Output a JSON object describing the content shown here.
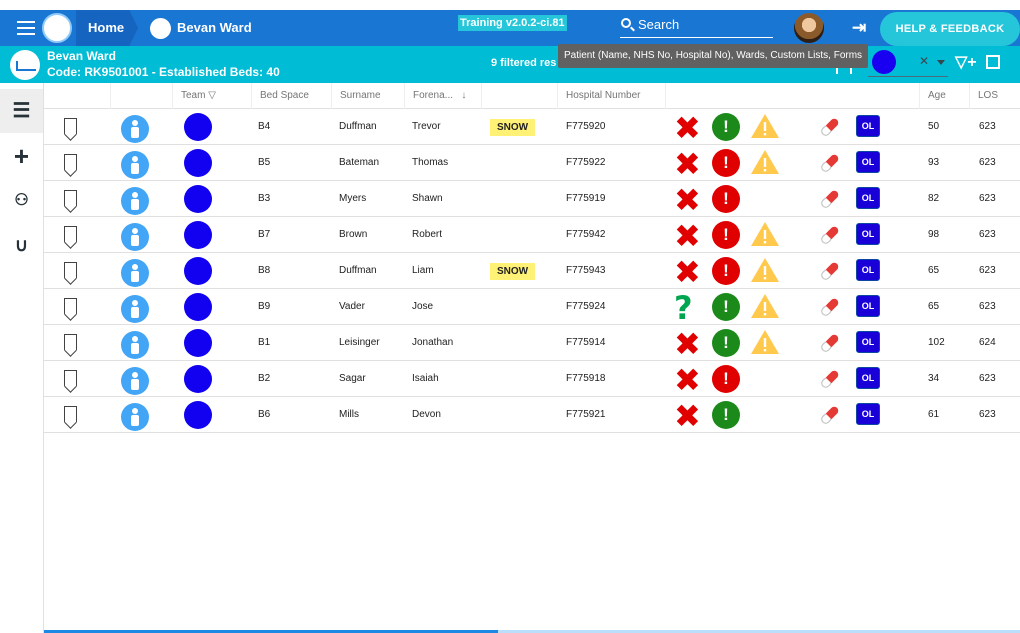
{
  "topbar": {
    "home_label": "Home",
    "ward_label": "Bevan Ward",
    "version": "Training v2.0.2-ci.81",
    "search_label": "Search",
    "help_label": "HELP & FEEDBACK"
  },
  "ward": {
    "name": "Bevan Ward",
    "code_line": "Code: RK9501001 - Established Beds: 40",
    "filtered_text": "9 filtered res",
    "search_tooltip": "Patient (Name, NHS No, Hospital No), Wards, Custom Lists, Forms"
  },
  "sidenav": {
    "icons": [
      "list-icon",
      "plus-icon",
      "handshake-icon",
      "stethoscope-icon"
    ]
  },
  "columns": {
    "team": "Team",
    "bed_space": "Bed Space",
    "surname": "Surname",
    "forename": "Forena...",
    "hospital_number": "Hospital Number",
    "age": "Age",
    "los": "LOS"
  },
  "colors": {
    "primary": "#1976d2",
    "accent": "#00bcd4",
    "team_dot": "#1200f0",
    "cross_red": "#e00000",
    "question_green": "#00a550",
    "alert_green": "#1b8a1b",
    "alert_red": "#e00000",
    "warning": "#ffc94d"
  },
  "rows": [
    {
      "bed": "B4",
      "surname": "Duffman",
      "forename": "Trevor",
      "tag": "SNOW",
      "hosp": "F775920",
      "status": "cross",
      "alert": "green",
      "warning": true,
      "ol": "OL",
      "age": "50",
      "los": "623"
    },
    {
      "bed": "B5",
      "surname": "Bateman",
      "forename": "Thomas",
      "tag": "",
      "hosp": "F775922",
      "status": "cross",
      "alert": "red",
      "warning": true,
      "ol": "OL",
      "age": "93",
      "los": "623"
    },
    {
      "bed": "B3",
      "surname": "Myers",
      "forename": "Shawn",
      "tag": "",
      "hosp": "F775919",
      "status": "cross",
      "alert": "red",
      "warning": false,
      "ol": "OL",
      "age": "82",
      "los": "623"
    },
    {
      "bed": "B7",
      "surname": "Brown",
      "forename": "Robert",
      "tag": "",
      "hosp": "F775942",
      "status": "cross",
      "alert": "red",
      "warning": true,
      "ol": "OL",
      "age": "98",
      "los": "623"
    },
    {
      "bed": "B8",
      "surname": "Duffman",
      "forename": "Liam",
      "tag": "SNOW",
      "hosp": "F775943",
      "status": "cross",
      "alert": "red",
      "warning": true,
      "ol": "OL",
      "age": "65",
      "los": "623"
    },
    {
      "bed": "B9",
      "surname": "Vader",
      "forename": "Jose",
      "tag": "",
      "hosp": "F775924",
      "status": "question",
      "alert": "green",
      "warning": true,
      "ol": "OL",
      "age": "65",
      "los": "623"
    },
    {
      "bed": "B1",
      "surname": "Leisinger",
      "forename": "Jonathan",
      "tag": "",
      "hosp": "F775914",
      "status": "cross",
      "alert": "green",
      "warning": true,
      "ol": "OL",
      "age": "102",
      "los": "624"
    },
    {
      "bed": "B2",
      "surname": "Sagar",
      "forename": "Isaiah",
      "tag": "",
      "hosp": "F775918",
      "status": "cross",
      "alert": "red",
      "warning": false,
      "ol": "OL",
      "age": "34",
      "los": "623"
    },
    {
      "bed": "B6",
      "surname": "Mills",
      "forename": "Devon",
      "tag": "",
      "hosp": "F775921",
      "status": "cross",
      "alert": "green",
      "warning": false,
      "ol": "OL",
      "age": "61",
      "los": "623"
    }
  ]
}
